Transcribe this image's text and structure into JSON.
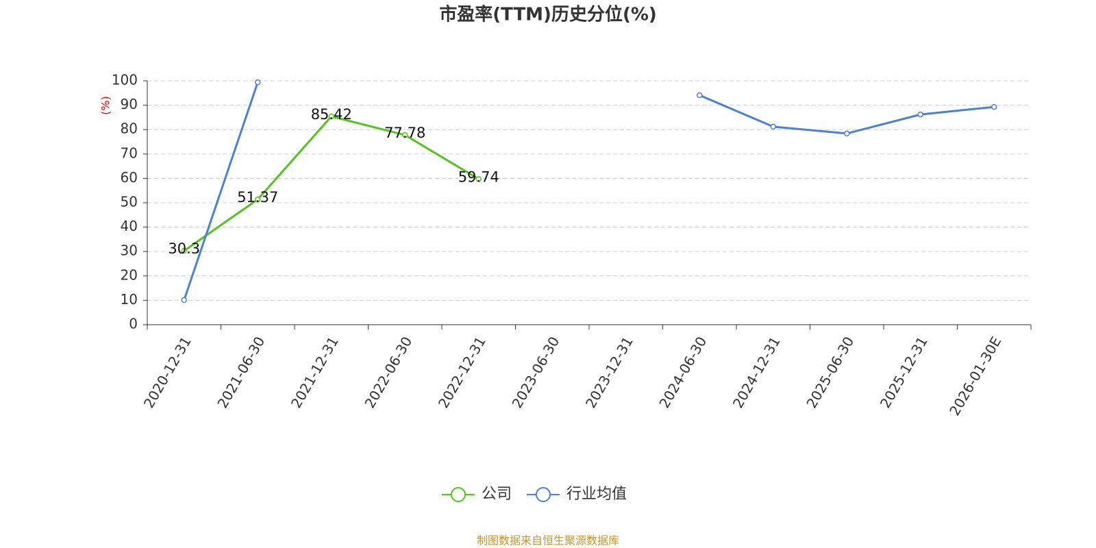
{
  "chart_data": {
    "type": "line",
    "title": "市盈率(TTM)历史分位(%)",
    "y_label": "(%)",
    "source": "制图数据来自恒生聚源数据库",
    "categories": [
      "2020-12-31",
      "2021-06-30",
      "2021-12-31",
      "2022-06-30",
      "2022-12-31",
      "2023-06-30",
      "2023-12-31",
      "2024-06-30",
      "2024-12-31",
      "2025-06-30",
      "2025-12-31",
      "2026-01-30E"
    ],
    "series": [
      {
        "name": "公司",
        "color": "#52c41a",
        "data_labels": true,
        "values": [
          30.3,
          51.37,
          85.42,
          77.78,
          59.74,
          null,
          null,
          null,
          null,
          null,
          null,
          null
        ]
      },
      {
        "name": "行业均值",
        "color": "#4a7fdc",
        "data_labels": false,
        "values": [
          10.1,
          99.4,
          null,
          null,
          null,
          null,
          null,
          94.1,
          81.2,
          78.4,
          86.2,
          89.3
        ]
      }
    ],
    "ylim": [
      0,
      100
    ],
    "yticks": [
      0,
      10,
      20,
      30,
      40,
      50,
      60,
      70,
      80,
      90,
      100
    ],
    "grid": true
  }
}
